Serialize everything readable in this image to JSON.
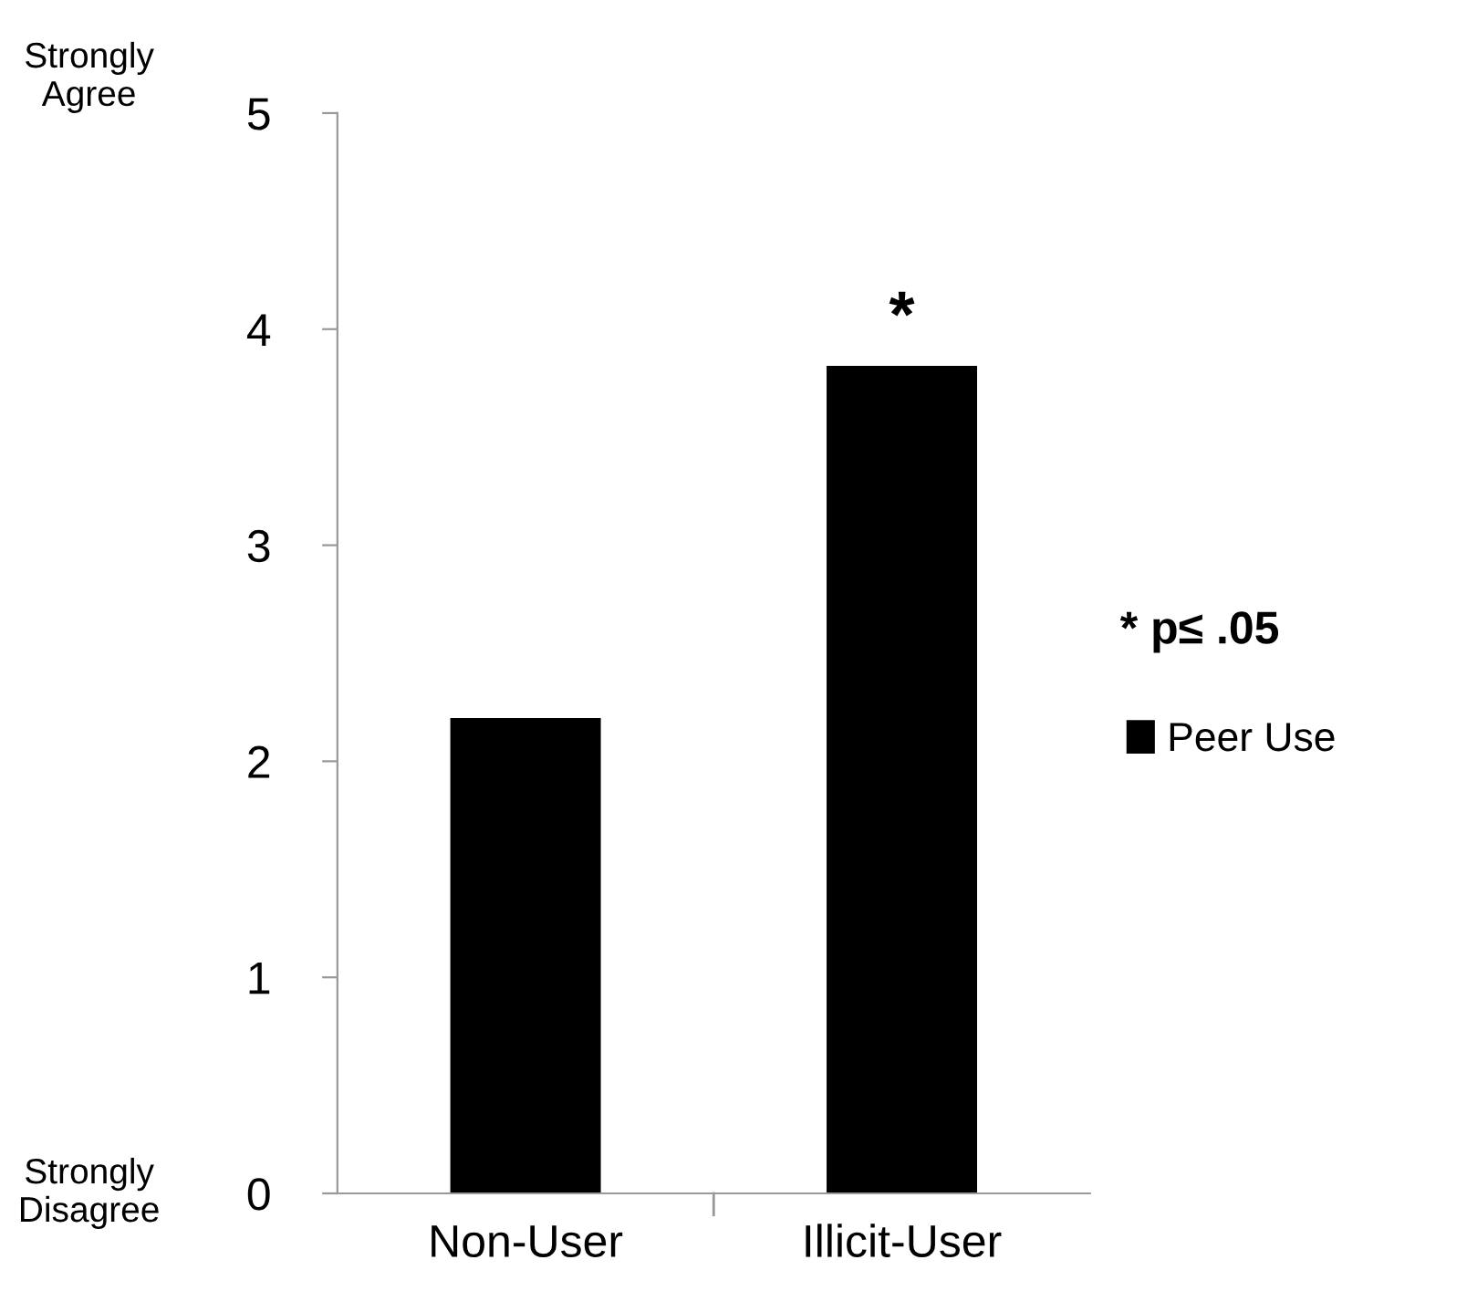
{
  "chart_data": {
    "type": "bar",
    "categories": [
      "Non-User",
      "Illicit-User"
    ],
    "series": [
      {
        "name": "Peer Use",
        "color": "#000000",
        "values": [
          2.2,
          3.83
        ]
      }
    ],
    "ylim": [
      0,
      5
    ],
    "yticks": [
      0,
      1,
      2,
      3,
      4,
      5
    ],
    "grid": false,
    "legend": "right",
    "annotations": [
      "Strongly\nAgree",
      "Strongly\nDisagree",
      "* p≤ .05",
      {
        "text": "*",
        "x": "Illicit-User",
        "y": 3.83
      }
    ]
  }
}
